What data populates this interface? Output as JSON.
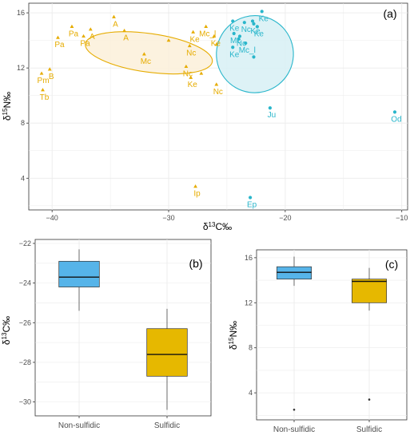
{
  "colors": {
    "sulfidic": "#E6AC00",
    "nonsulfidic": "#29B6CB",
    "sulfidic_ellipse_fill": "#FBF0D9",
    "nonsulfidic_ellipse_fill": "#D7F0F4",
    "box_nonsulfidic": "#56B4E9",
    "box_sulfidic": "#E6B800",
    "grid": "#EBEBEB",
    "axis_text": "#4D4D4D"
  },
  "chart_data": [
    {
      "type": "scatter",
      "panel_label": "(a)",
      "xlabel_prefix": "δ",
      "xlabel_sup": "13",
      "xlabel_suffix": "C‰",
      "ylabel_prefix": "δ",
      "ylabel_sup": "15",
      "ylabel_suffix": "N‰",
      "xlim": [
        -42,
        -9.5
      ],
      "ylim": [
        1.7,
        16.7
      ],
      "xticks": [
        -40,
        -30,
        -20,
        -10
      ],
      "yticks": [
        4,
        8,
        12,
        16
      ],
      "grid": true,
      "series": [
        {
          "group": "sulfidic",
          "marker": "triangle",
          "points": [
            {
              "x": -34.7,
              "y": 15.7,
              "label": "A"
            },
            {
              "x": -36.7,
              "y": 14.8,
              "label": "A"
            },
            {
              "x": -33.8,
              "y": 14.7,
              "label": "A"
            },
            {
              "x": -38.3,
              "y": 15.0,
              "label": "Pa"
            },
            {
              "x": -39.5,
              "y": 14.2,
              "label": "Pa"
            },
            {
              "x": -37.3,
              "y": 14.3,
              "label": "Pa"
            },
            {
              "x": -40.2,
              "y": 11.9,
              "label": "B"
            },
            {
              "x": -40.9,
              "y": 11.6,
              "label": "Pm"
            },
            {
              "x": -40.8,
              "y": 10.4,
              "label": "Tb"
            },
            {
              "x": -32.1,
              "y": 13.0,
              "label": "Mc"
            },
            {
              "x": -30.0,
              "y": 14.0,
              "label": ""
            },
            {
              "x": -26.8,
              "y": 15.0,
              "label": "Mc_l"
            },
            {
              "x": -27.9,
              "y": 14.6,
              "label": "Ke"
            },
            {
              "x": -26.1,
              "y": 14.3,
              "label": "Ke"
            },
            {
              "x": -28.2,
              "y": 13.6,
              "label": "Nc"
            },
            {
              "x": -28.5,
              "y": 12.1,
              "label": "Nc"
            },
            {
              "x": -25.9,
              "y": 13.7,
              "label": ""
            },
            {
              "x": -27.2,
              "y": 11.6,
              "label": ""
            },
            {
              "x": -28.1,
              "y": 11.3,
              "label": "Ke"
            },
            {
              "x": -25.9,
              "y": 10.8,
              "label": "Nc"
            },
            {
              "x": -27.7,
              "y": 3.4,
              "label": "Ip"
            }
          ]
        },
        {
          "group": "nonsulfidic",
          "marker": "circle",
          "points": [
            {
              "x": -22.0,
              "y": 16.1,
              "label": "Ke"
            },
            {
              "x": -24.5,
              "y": 15.4,
              "label": "Ke"
            },
            {
              "x": -23.5,
              "y": 15.3,
              "label": "Nc"
            },
            {
              "x": -22.8,
              "y": 15.4,
              "label": ""
            },
            {
              "x": -22.7,
              "y": 15.2,
              "label": "Ke"
            },
            {
              "x": -22.4,
              "y": 15.0,
              "label": "Ke"
            },
            {
              "x": -24.4,
              "y": 14.5,
              "label": "Mc"
            },
            {
              "x": -23.9,
              "y": 14.3,
              "label": "Nc"
            },
            {
              "x": -24.0,
              "y": 14.1,
              "label": ""
            },
            {
              "x": -23.4,
              "y": 13.8,
              "label": "Mc_l"
            },
            {
              "x": -24.5,
              "y": 13.5,
              "label": "Ke"
            },
            {
              "x": -22.7,
              "y": 12.8,
              "label": ""
            },
            {
              "x": -21.3,
              "y": 9.1,
              "label": "Ju"
            },
            {
              "x": -10.6,
              "y": 8.8,
              "label": "Od"
            },
            {
              "x": -23.0,
              "y": 2.6,
              "label": "Ep"
            }
          ]
        }
      ],
      "ellipses": [
        {
          "group": "sulfidic",
          "cx": -31.7,
          "cy": 13.1,
          "rx": 5.5,
          "ry": 1.4,
          "rotation_deg": 8
        },
        {
          "group": "nonsulfidic",
          "cx": -22.6,
          "cy": 13.0,
          "rx": 3.3,
          "ry": 2.8,
          "rotation_deg": 30
        }
      ]
    },
    {
      "type": "box",
      "panel_label": "(b)",
      "categories": [
        "Non-sulfidic",
        "Sulfidic"
      ],
      "ylabel_prefix": "δ",
      "ylabel_sup": "13",
      "ylabel_suffix": "C‰",
      "ylim": [
        -30.7,
        -21.8
      ],
      "yticks": [
        -30,
        -28,
        -26,
        -24,
        -22
      ],
      "boxes": [
        {
          "category": "Non-sulfidic",
          "min": -25.4,
          "q1": -24.2,
          "median": -23.7,
          "q3": -22.9,
          "max": -22.3,
          "outliers": []
        },
        {
          "category": "Sulfidic",
          "min": -30.4,
          "q1": -28.7,
          "median": -27.6,
          "q3": -26.3,
          "max": -25.3,
          "outliers": []
        }
      ]
    },
    {
      "type": "box",
      "panel_label": "(c)",
      "categories": [
        "Non-sulfidic",
        "Sulfidic"
      ],
      "ylabel_prefix": "δ",
      "ylabel_sup": "15",
      "ylabel_suffix": "N‰",
      "ylim": [
        1.6,
        16.7
      ],
      "yticks": [
        4,
        8,
        12,
        16
      ],
      "boxes": [
        {
          "category": "Non-sulfidic",
          "min": 13.5,
          "q1": 14.1,
          "median": 14.7,
          "q3": 15.2,
          "max": 16.1,
          "outliers": [
            2.5
          ]
        },
        {
          "category": "Sulfidic",
          "min": 11.3,
          "q1": 12.0,
          "median": 13.9,
          "q3": 14.1,
          "max": 15.1,
          "outliers": [
            3.4
          ]
        }
      ]
    }
  ]
}
